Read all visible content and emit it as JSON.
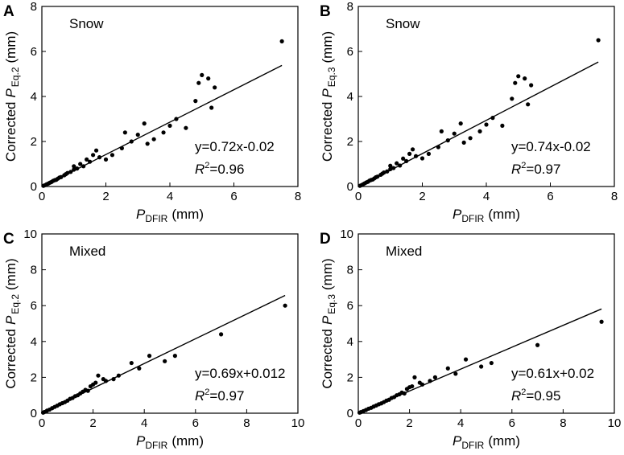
{
  "chart_data": [
    {
      "type": "scatter",
      "panel": "A",
      "title": "Snow",
      "x_label": {
        "symbol": "P",
        "sub": "DFIR",
        "unit": "(mm)"
      },
      "y_label": {
        "prefix": "Corrected",
        "symbol": "P",
        "sub": "Eq.2",
        "unit": "(mm)"
      },
      "xlim": [
        0,
        8
      ],
      "ylim": [
        0,
        8
      ],
      "xticks": [
        0,
        2,
        4,
        6,
        8
      ],
      "yticks": [
        0,
        2,
        4,
        6,
        8
      ],
      "fit": {
        "slope": 0.72,
        "intercept": -0.02,
        "label": "y=0.72x-0.02"
      },
      "r2": {
        "symbol": "R",
        "sup": "2",
        "value": "=0.96"
      },
      "series": [
        {
          "color": "#000000",
          "x": [
            0.05,
            0.1,
            0.15,
            0.2,
            0.25,
            0.3,
            0.35,
            0.4,
            0.45,
            0.5,
            0.55,
            0.6,
            0.7,
            0.75,
            0.8,
            0.9,
            1.0,
            1.0,
            1.1,
            1.2,
            1.3,
            1.4,
            1.5,
            1.6,
            1.7,
            1.8,
            2.0,
            2.2,
            2.5,
            2.6,
            2.8,
            3.0,
            3.2,
            3.3,
            3.5,
            3.8,
            4.0,
            4.2,
            4.5,
            4.8,
            4.9,
            5.0,
            5.2,
            5.3,
            5.4,
            7.5
          ],
          "values": [
            0.03,
            0.06,
            0.1,
            0.13,
            0.17,
            0.2,
            0.25,
            0.28,
            0.3,
            0.35,
            0.4,
            0.42,
            0.5,
            0.55,
            0.6,
            0.65,
            0.75,
            0.9,
            0.8,
            1.0,
            0.9,
            1.2,
            1.1,
            1.4,
            1.6,
            1.3,
            1.2,
            1.4,
            1.7,
            2.4,
            2.0,
            2.3,
            2.8,
            1.9,
            2.1,
            2.4,
            2.7,
            3.0,
            2.6,
            3.8,
            4.6,
            4.95,
            4.8,
            3.5,
            4.4,
            6.45
          ]
        }
      ]
    },
    {
      "type": "scatter",
      "panel": "B",
      "title": "Snow",
      "x_label": {
        "symbol": "P",
        "sub": "DFIR",
        "unit": "(mm)"
      },
      "y_label": {
        "prefix": "Corrected",
        "symbol": "P",
        "sub": "Eq.3",
        "unit": "(mm)"
      },
      "xlim": [
        0,
        8
      ],
      "ylim": [
        0,
        8
      ],
      "xticks": [
        0,
        2,
        4,
        6,
        8
      ],
      "yticks": [
        0,
        2,
        4,
        6,
        8
      ],
      "fit": {
        "slope": 0.74,
        "intercept": -0.02,
        "label": "y=0.74x-0.02"
      },
      "r2": {
        "symbol": "R",
        "sup": "2",
        "value": "=0.97"
      },
      "series": [
        {
          "color": "#000000",
          "x": [
            0.05,
            0.1,
            0.15,
            0.2,
            0.25,
            0.3,
            0.35,
            0.4,
            0.45,
            0.5,
            0.55,
            0.6,
            0.7,
            0.75,
            0.8,
            0.9,
            1.0,
            1.0,
            1.1,
            1.2,
            1.3,
            1.4,
            1.5,
            1.6,
            1.7,
            1.8,
            2.0,
            2.2,
            2.5,
            2.6,
            2.8,
            3.0,
            3.2,
            3.3,
            3.5,
            3.8,
            4.0,
            4.2,
            4.5,
            4.8,
            4.9,
            5.0,
            5.2,
            5.3,
            5.4,
            7.5
          ],
          "values": [
            0.03,
            0.06,
            0.1,
            0.14,
            0.18,
            0.21,
            0.26,
            0.29,
            0.31,
            0.36,
            0.41,
            0.44,
            0.52,
            0.57,
            0.62,
            0.67,
            0.77,
            0.92,
            0.82,
            1.03,
            0.93,
            1.24,
            1.13,
            1.45,
            1.65,
            1.35,
            1.25,
            1.45,
            1.75,
            2.45,
            2.05,
            2.35,
            2.8,
            1.95,
            2.15,
            2.45,
            2.75,
            3.05,
            2.7,
            3.9,
            4.6,
            4.9,
            4.8,
            3.65,
            4.5,
            6.5
          ]
        }
      ]
    },
    {
      "type": "scatter",
      "panel": "C",
      "title": "Mixed",
      "x_label": {
        "symbol": "P",
        "sub": "DFIR",
        "unit": "(mm)"
      },
      "y_label": {
        "prefix": "Corrected",
        "symbol": "P",
        "sub": "Eq.2",
        "unit": "(mm)"
      },
      "xlim": [
        0,
        10
      ],
      "ylim": [
        0,
        10
      ],
      "xticks": [
        0,
        2,
        4,
        6,
        8,
        10
      ],
      "yticks": [
        0,
        2,
        4,
        6,
        8,
        10
      ],
      "fit": {
        "slope": 0.69,
        "intercept": 0.012,
        "label": "y=0.69x+0.012"
      },
      "r2": {
        "symbol": "R",
        "sup": "2",
        "value": "=0.97"
      },
      "series": [
        {
          "color": "#000000",
          "x": [
            0.05,
            0.1,
            0.2,
            0.3,
            0.4,
            0.5,
            0.6,
            0.7,
            0.8,
            0.9,
            1.0,
            1.1,
            1.2,
            1.3,
            1.4,
            1.5,
            1.6,
            1.7,
            1.8,
            1.9,
            2.0,
            2.1,
            2.2,
            2.4,
            2.5,
            2.8,
            3.0,
            3.5,
            3.8,
            4.2,
            4.8,
            5.2,
            7.0,
            9.5
          ],
          "values": [
            0.03,
            0.07,
            0.14,
            0.2,
            0.28,
            0.35,
            0.42,
            0.5,
            0.56,
            0.62,
            0.7,
            0.8,
            0.85,
            0.95,
            1.0,
            1.1,
            1.2,
            1.3,
            1.25,
            1.5,
            1.6,
            1.7,
            2.1,
            1.9,
            1.8,
            1.9,
            2.1,
            2.8,
            2.5,
            3.2,
            2.9,
            3.2,
            4.4,
            6.0
          ]
        }
      ]
    },
    {
      "type": "scatter",
      "panel": "D",
      "title": "Mixed",
      "x_label": {
        "symbol": "P",
        "sub": "DFIR",
        "unit": "(mm)"
      },
      "y_label": {
        "prefix": "Corrected",
        "symbol": "P",
        "sub": "Eq.3",
        "unit": "(mm)"
      },
      "xlim": [
        0,
        10
      ],
      "ylim": [
        0,
        10
      ],
      "xticks": [
        0,
        2,
        4,
        6,
        8,
        10
      ],
      "yticks": [
        0,
        2,
        4,
        6,
        8,
        10
      ],
      "fit": {
        "slope": 0.61,
        "intercept": 0.02,
        "label": "y=0.61x+0.02"
      },
      "r2": {
        "symbol": "R",
        "sup": "2",
        "value": "=0.95"
      },
      "series": [
        {
          "color": "#000000",
          "x": [
            0.05,
            0.1,
            0.2,
            0.3,
            0.4,
            0.5,
            0.6,
            0.7,
            0.8,
            0.9,
            1.0,
            1.1,
            1.2,
            1.3,
            1.4,
            1.5,
            1.6,
            1.7,
            1.8,
            1.9,
            2.0,
            2.1,
            2.2,
            2.4,
            2.5,
            2.8,
            3.0,
            3.5,
            3.8,
            4.2,
            4.8,
            5.2,
            7.0,
            9.5
          ],
          "values": [
            0.03,
            0.06,
            0.12,
            0.18,
            0.25,
            0.3,
            0.37,
            0.43,
            0.5,
            0.55,
            0.62,
            0.7,
            0.75,
            0.85,
            0.9,
            1.0,
            1.05,
            1.15,
            1.1,
            1.35,
            1.45,
            1.5,
            2.0,
            1.7,
            1.6,
            1.8,
            2.0,
            2.5,
            2.2,
            3.0,
            2.6,
            2.8,
            3.8,
            5.1
          ]
        }
      ]
    }
  ]
}
